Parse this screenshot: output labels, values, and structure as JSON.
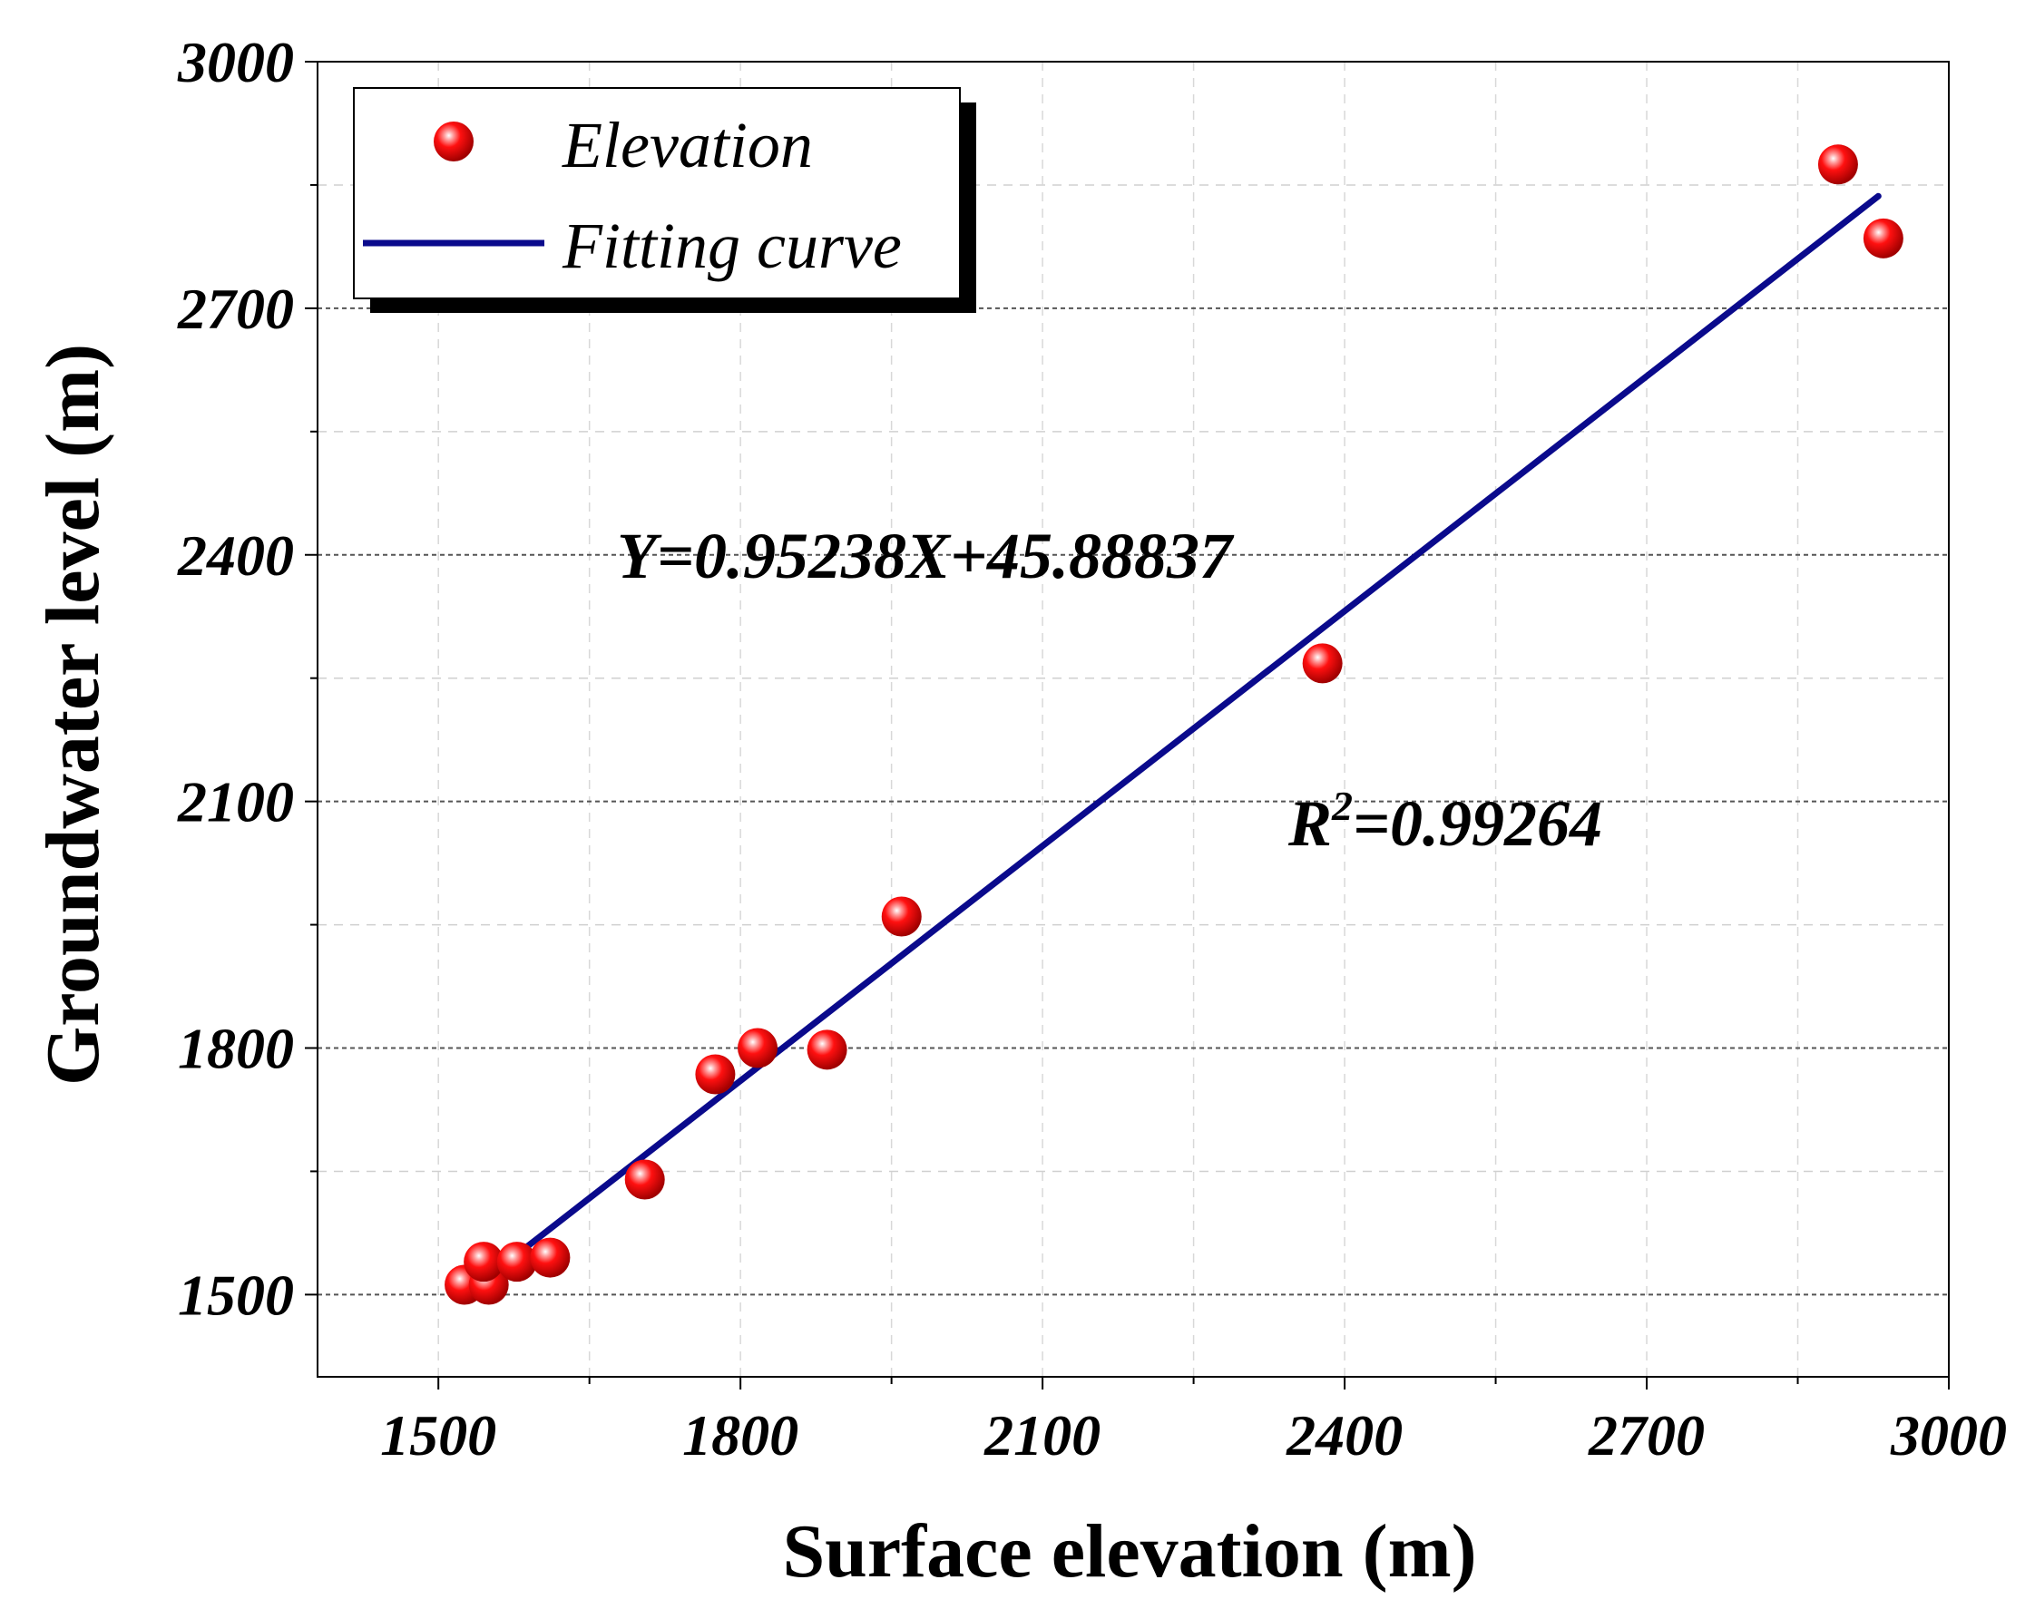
{
  "chart_data": {
    "type": "scatter",
    "xlabel": "Surface elevation (m)",
    "ylabel": "Groundwater level (m)",
    "xlim": [
      1380,
      3000
    ],
    "ylim": [
      1400,
      3000
    ],
    "xticks": [
      1500,
      1800,
      2100,
      2400,
      2700,
      3000
    ],
    "yticks": [
      1500,
      1800,
      2100,
      2400,
      2700,
      3000
    ],
    "grid": "dashed horizontal major lines, light dashed minor lines",
    "legend_position": "top-left",
    "series": [
      {
        "name": "Elevation",
        "kind": "scatter",
        "color": "#e8000b",
        "points": [
          {
            "x": 1526,
            "y": 1512
          },
          {
            "x": 1550,
            "y": 1512
          },
          {
            "x": 1545,
            "y": 1540
          },
          {
            "x": 1578,
            "y": 1540
          },
          {
            "x": 1611,
            "y": 1545
          },
          {
            "x": 1705,
            "y": 1640
          },
          {
            "x": 1775,
            "y": 1768
          },
          {
            "x": 1817,
            "y": 1800
          },
          {
            "x": 1886,
            "y": 1798
          },
          {
            "x": 1960,
            "y": 1960
          },
          {
            "x": 2378,
            "y": 2268
          },
          {
            "x": 2890,
            "y": 2875
          },
          {
            "x": 2935,
            "y": 2785
          }
        ]
      },
      {
        "name": "Fitting curve",
        "kind": "line",
        "color": "#0a0a8c",
        "slope": 0.95238,
        "intercept": 45.88837,
        "x_range": [
          1530,
          2930
        ]
      }
    ],
    "annotations": {
      "equation": "Y=0.95238X+45.88837",
      "r2_prefix": "R",
      "r2_sup": "2",
      "r2_value": "=0.99264"
    }
  }
}
